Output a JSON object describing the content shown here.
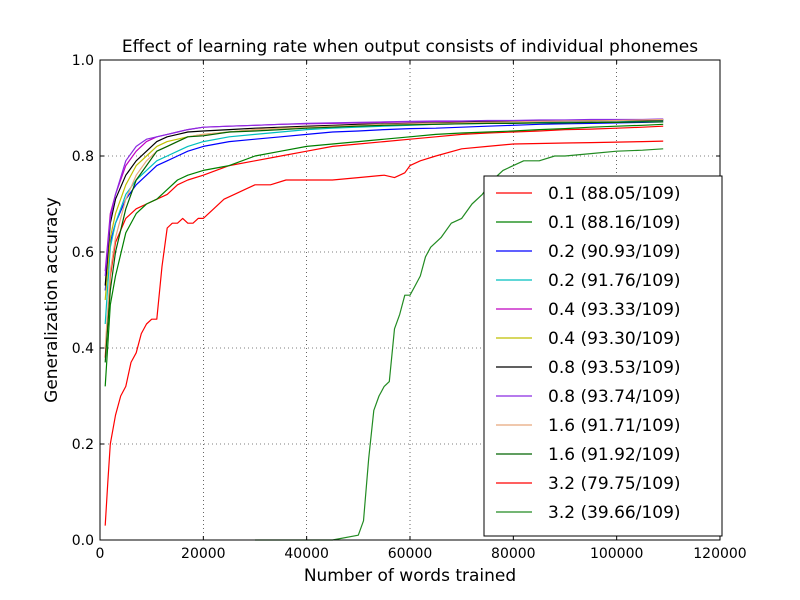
{
  "chart_data": {
    "type": "line",
    "title": "Effect of learning rate when output consists of individual phonemes",
    "xlabel": "Number of words trained",
    "ylabel": "Generalization accuracy",
    "xlim": [
      0,
      120000
    ],
    "ylim": [
      0.0,
      1.0
    ],
    "xticks": [
      0,
      20000,
      40000,
      60000,
      80000,
      100000,
      120000
    ],
    "xtick_labels": [
      "0",
      "20000",
      "40000",
      "60000",
      "80000",
      "100000",
      "120000"
    ],
    "yticks": [
      0.0,
      0.2,
      0.4,
      0.6,
      0.8,
      1.0
    ],
    "ytick_labels": [
      "0.0",
      "0.2",
      "0.4",
      "0.6",
      "0.8",
      "1.0"
    ],
    "grid": true,
    "legend_position": "right",
    "series": [
      {
        "name": "0.1 (88.05/109)",
        "color": "#ff0000",
        "x": [
          1000,
          2000,
          3000,
          5000,
          7000,
          9000,
          11000,
          13000,
          15000,
          17000,
          20000,
          25000,
          30000,
          35000,
          40000,
          45000,
          50000,
          55000,
          60000,
          65000,
          70000,
          75000,
          80000,
          85000,
          90000,
          95000,
          100000,
          105000,
          109000
        ],
        "y": [
          0.38,
          0.55,
          0.62,
          0.67,
          0.69,
          0.7,
          0.71,
          0.72,
          0.74,
          0.75,
          0.76,
          0.78,
          0.79,
          0.8,
          0.81,
          0.82,
          0.825,
          0.83,
          0.835,
          0.84,
          0.845,
          0.848,
          0.85,
          0.852,
          0.855,
          0.856,
          0.858,
          0.86,
          0.862
        ]
      },
      {
        "name": "0.1 (88.16/109)",
        "color": "#008000",
        "x": [
          1000,
          2000,
          3000,
          5000,
          7000,
          9000,
          11000,
          13000,
          15000,
          17000,
          20000,
          25000,
          30000,
          35000,
          40000,
          45000,
          50000,
          55000,
          60000,
          65000,
          70000,
          75000,
          80000,
          85000,
          90000,
          95000,
          100000,
          105000,
          109000
        ],
        "y": [
          0.32,
          0.49,
          0.55,
          0.64,
          0.68,
          0.7,
          0.71,
          0.73,
          0.75,
          0.76,
          0.77,
          0.78,
          0.8,
          0.81,
          0.82,
          0.825,
          0.83,
          0.835,
          0.84,
          0.845,
          0.848,
          0.85,
          0.852,
          0.855,
          0.857,
          0.86,
          0.862,
          0.864,
          0.866
        ]
      },
      {
        "name": "0.2 (90.93/109)",
        "color": "#0000ff",
        "x": [
          1000,
          2000,
          3000,
          5000,
          7000,
          9000,
          11000,
          13000,
          15000,
          17000,
          20000,
          25000,
          30000,
          35000,
          40000,
          45000,
          50000,
          55000,
          60000,
          65000,
          70000,
          75000,
          80000,
          85000,
          90000,
          95000,
          100000,
          105000,
          109000
        ],
        "y": [
          0.52,
          0.62,
          0.66,
          0.71,
          0.74,
          0.76,
          0.78,
          0.79,
          0.8,
          0.81,
          0.82,
          0.83,
          0.835,
          0.84,
          0.845,
          0.85,
          0.852,
          0.855,
          0.857,
          0.858,
          0.86,
          0.862,
          0.864,
          0.866,
          0.867,
          0.868,
          0.869,
          0.87,
          0.871
        ]
      },
      {
        "name": "0.2 (91.76/109)",
        "color": "#00bfbf",
        "x": [
          1000,
          2000,
          3000,
          5000,
          7000,
          9000,
          11000,
          13000,
          15000,
          17000,
          20000,
          25000,
          30000,
          35000,
          40000,
          45000,
          50000,
          55000,
          60000,
          65000,
          70000,
          75000,
          80000,
          85000,
          90000,
          95000,
          100000,
          105000,
          109000
        ],
        "y": [
          0.45,
          0.61,
          0.66,
          0.72,
          0.75,
          0.77,
          0.79,
          0.8,
          0.81,
          0.82,
          0.83,
          0.84,
          0.845,
          0.85,
          0.855,
          0.858,
          0.86,
          0.862,
          0.864,
          0.866,
          0.867,
          0.868,
          0.869,
          0.87,
          0.871,
          0.872,
          0.873,
          0.873,
          0.874
        ]
      },
      {
        "name": "0.4 (93.33/109)",
        "color": "#bf00bf",
        "x": [
          1000,
          2000,
          3000,
          5000,
          7000,
          9000,
          11000,
          13000,
          15000,
          17000,
          20000,
          25000,
          30000,
          35000,
          40000,
          45000,
          50000,
          55000,
          60000,
          65000,
          70000,
          75000,
          80000,
          85000,
          90000,
          95000,
          100000,
          105000,
          109000
        ],
        "y": [
          0.56,
          0.68,
          0.72,
          0.78,
          0.81,
          0.83,
          0.84,
          0.845,
          0.85,
          0.855,
          0.86,
          0.862,
          0.864,
          0.866,
          0.867,
          0.868,
          0.869,
          0.87,
          0.871,
          0.872,
          0.872,
          0.873,
          0.873,
          0.874,
          0.874,
          0.875,
          0.875,
          0.875,
          0.876
        ]
      },
      {
        "name": "0.4 (93.30/109)",
        "color": "#bfbf00",
        "x": [
          1000,
          2000,
          3000,
          5000,
          7000,
          9000,
          11000,
          13000,
          15000,
          17000,
          20000,
          25000,
          30000,
          35000,
          40000,
          45000,
          50000,
          55000,
          60000,
          65000,
          70000,
          75000,
          80000,
          85000,
          90000,
          95000,
          100000,
          105000,
          109000
        ],
        "y": [
          0.5,
          0.63,
          0.68,
          0.74,
          0.78,
          0.8,
          0.82,
          0.83,
          0.835,
          0.84,
          0.845,
          0.85,
          0.855,
          0.858,
          0.86,
          0.862,
          0.864,
          0.866,
          0.867,
          0.868,
          0.869,
          0.87,
          0.871,
          0.872,
          0.873,
          0.874,
          0.874,
          0.875,
          0.875
        ]
      },
      {
        "name": "0.8 (93.53/109)",
        "color": "#000000",
        "x": [
          1000,
          2000,
          3000,
          5000,
          7000,
          9000,
          11000,
          13000,
          15000,
          17000,
          20000,
          25000,
          30000,
          35000,
          40000,
          45000,
          50000,
          55000,
          60000,
          65000,
          70000,
          75000,
          80000,
          85000,
          90000,
          95000,
          100000,
          105000,
          109000
        ],
        "y": [
          0.53,
          0.66,
          0.71,
          0.76,
          0.79,
          0.81,
          0.83,
          0.84,
          0.845,
          0.85,
          0.852,
          0.855,
          0.858,
          0.86,
          0.862,
          0.864,
          0.866,
          0.867,
          0.868,
          0.869,
          0.87,
          0.871,
          0.872,
          0.872,
          0.873,
          0.873,
          0.874,
          0.874,
          0.875
        ]
      },
      {
        "name": "0.8 (93.74/109)",
        "color": "#8a2be2",
        "x": [
          1000,
          2000,
          3000,
          5000,
          7000,
          9000,
          11000,
          13000,
          15000,
          17000,
          20000,
          25000,
          30000,
          35000,
          40000,
          45000,
          50000,
          55000,
          60000,
          65000,
          70000,
          75000,
          80000,
          85000,
          90000,
          95000,
          100000,
          105000,
          109000
        ],
        "y": [
          0.55,
          0.67,
          0.72,
          0.79,
          0.82,
          0.835,
          0.84,
          0.845,
          0.85,
          0.855,
          0.86,
          0.862,
          0.864,
          0.866,
          0.868,
          0.869,
          0.87,
          0.871,
          0.872,
          0.873,
          0.873,
          0.874,
          0.874,
          0.875,
          0.875,
          0.876,
          0.876,
          0.876,
          0.877
        ]
      },
      {
        "name": "1.6 (91.71/109)",
        "color": "#e8a87c",
        "x": [
          1000,
          2000,
          3000,
          5000,
          7000,
          9000,
          11000,
          13000,
          15000,
          17000,
          20000,
          25000,
          30000,
          35000,
          40000,
          45000,
          50000,
          55000,
          60000,
          65000,
          70000,
          75000,
          80000,
          85000,
          90000,
          95000,
          100000,
          105000,
          109000
        ],
        "y": [
          0.4,
          0.56,
          0.63,
          0.71,
          0.76,
          0.79,
          0.81,
          0.82,
          0.83,
          0.84,
          0.845,
          0.85,
          0.855,
          0.858,
          0.86,
          0.862,
          0.864,
          0.866,
          0.867,
          0.868,
          0.869,
          0.87,
          0.871,
          0.872,
          0.873,
          0.873,
          0.874,
          0.875,
          0.876
        ]
      },
      {
        "name": "1.6 (91.92/109)",
        "color": "#006400",
        "x": [
          1000,
          2000,
          3000,
          5000,
          7000,
          9000,
          11000,
          13000,
          15000,
          17000,
          20000,
          25000,
          30000,
          35000,
          40000,
          45000,
          50000,
          55000,
          60000,
          65000,
          70000,
          75000,
          80000,
          85000,
          90000,
          95000,
          100000,
          105000,
          109000
        ],
        "y": [
          0.37,
          0.52,
          0.6,
          0.69,
          0.75,
          0.78,
          0.81,
          0.82,
          0.83,
          0.84,
          0.842,
          0.85,
          0.852,
          0.855,
          0.858,
          0.86,
          0.862,
          0.864,
          0.865,
          0.866,
          0.867,
          0.868,
          0.868,
          0.869,
          0.869,
          0.87,
          0.87,
          0.871,
          0.871
        ]
      },
      {
        "name": "3.2 (79.75/109)",
        "color": "#ff0000",
        "x": [
          1000,
          1500,
          2000,
          3000,
          4000,
          5000,
          6000,
          7000,
          8000,
          9000,
          10000,
          11000,
          12000,
          13000,
          14000,
          15000,
          16000,
          17000,
          18000,
          19000,
          20000,
          22000,
          24000,
          26000,
          28000,
          30000,
          33000,
          36000,
          40000,
          45000,
          50000,
          55000,
          57000,
          58000,
          59000,
          60000,
          62000,
          65000,
          70000,
          75000,
          80000,
          85000,
          90000,
          95000,
          100000,
          105000,
          109000
        ],
        "y": [
          0.03,
          0.12,
          0.2,
          0.26,
          0.3,
          0.32,
          0.37,
          0.39,
          0.43,
          0.45,
          0.46,
          0.46,
          0.57,
          0.65,
          0.66,
          0.66,
          0.67,
          0.66,
          0.66,
          0.67,
          0.67,
          0.69,
          0.71,
          0.72,
          0.73,
          0.74,
          0.74,
          0.75,
          0.75,
          0.75,
          0.755,
          0.76,
          0.755,
          0.76,
          0.765,
          0.78,
          0.79,
          0.8,
          0.815,
          0.82,
          0.825,
          0.826,
          0.827,
          0.828,
          0.829,
          0.83,
          0.831
        ]
      },
      {
        "name": "3.2 (39.66/109)",
        "color": "#228b22",
        "x": [
          30000,
          35000,
          40000,
          45000,
          50000,
          51000,
          52000,
          53000,
          54000,
          55000,
          56000,
          57000,
          58000,
          59000,
          60000,
          61000,
          62000,
          63000,
          64000,
          65000,
          66000,
          68000,
          70000,
          72000,
          74000,
          76000,
          78000,
          80000,
          82000,
          85000,
          88000,
          90000,
          95000,
          100000,
          105000,
          109000
        ],
        "y": [
          0.0,
          0.0,
          0.0,
          0.0,
          0.01,
          0.04,
          0.17,
          0.27,
          0.3,
          0.32,
          0.33,
          0.44,
          0.47,
          0.51,
          0.51,
          0.53,
          0.55,
          0.59,
          0.61,
          0.62,
          0.63,
          0.66,
          0.67,
          0.7,
          0.72,
          0.75,
          0.77,
          0.78,
          0.79,
          0.79,
          0.8,
          0.8,
          0.805,
          0.81,
          0.812,
          0.815
        ]
      }
    ]
  }
}
